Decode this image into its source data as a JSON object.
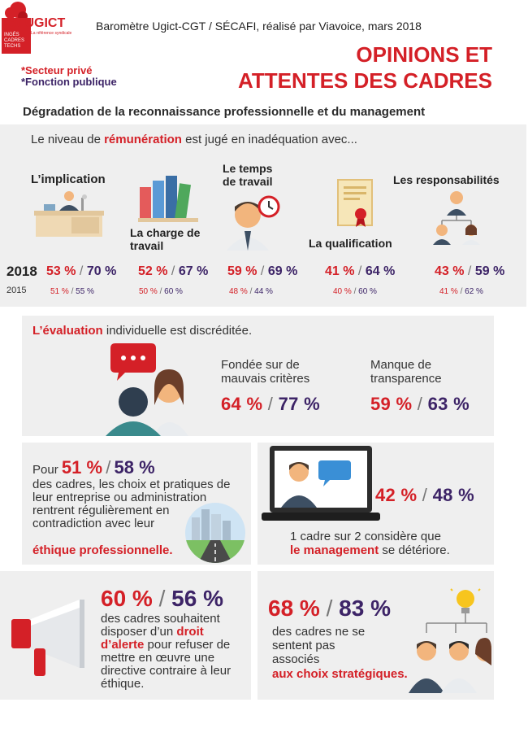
{
  "header": {
    "logo_text": "cgt UGICT",
    "logo_sub": "La référence syndicale",
    "logo_lines": [
      "INGÉS",
      "CADRES",
      "TECHS"
    ],
    "source": "Baromètre Ugict-CGT / SÉCAFI, réalisé par Viavoice, mars 2018",
    "legend_private": "*Secteur privé",
    "legend_public": "*Fonction publique",
    "title_line1": "OPINIONS ET",
    "title_line2": "ATTENTES DES CADRES",
    "subtitle": "Dégradation de la reconnaissance professionnelle et du management"
  },
  "remuneration": {
    "intro_before": "Le niveau de ",
    "intro_keyword": "rémunération",
    "intro_after": " est jugé en inadéquation avec...",
    "year_2018": "2018",
    "year_2015": "2015",
    "slash": "/",
    "items": [
      {
        "label": "L’implication",
        "private_2018": "53 %",
        "public_2018": "70 %",
        "private_2015": "51 %",
        "public_2015": "55 %"
      },
      {
        "label": "La charge de travail",
        "private_2018": "52 %",
        "public_2018": "67 %",
        "private_2015": "50 %",
        "public_2015": "60 %"
      },
      {
        "label": "Le temps de travail",
        "private_2018": "59 %",
        "public_2018": "69 %",
        "private_2015": "48 %",
        "public_2015": "44 %"
      },
      {
        "label": "La qualification",
        "private_2018": "41 %",
        "public_2018": "64 %",
        "private_2015": "40 %",
        "public_2015": "60 %"
      },
      {
        "label": "Les responsabilités",
        "private_2018": "43 %",
        "public_2018": "59 %",
        "private_2015": "41 %",
        "public_2015": "62 %"
      }
    ]
  },
  "evaluation": {
    "keyword": "L’évaluation",
    "rest": " individuelle est discréditée.",
    "col1_label": "Fondée sur de mauvais critères",
    "col1_private": "64 %",
    "col1_public": "77 %",
    "col2_label": "Manque de transparence",
    "col2_private": "59 %",
    "col2_public": "63 %"
  },
  "ethics": {
    "prefix": "Pour ",
    "private": "51 %",
    "public": "58 %",
    "text": "des cadres, les choix et pratiques de leur entreprise ou administration rentrent régulièrement en contradiction avec leur",
    "keyword": "éthique professionnelle."
  },
  "management": {
    "private": "42 %",
    "public": "48 %",
    "text_line1": "1 cadre sur 2 considère que",
    "keyword": "le management",
    "text_after": " se détériore."
  },
  "alert": {
    "private": "60 %",
    "public": "56 %",
    "text_before": "des cadres souhaitent disposer d’un ",
    "keyword": "droit d’alerte",
    "text_after": " pour refuser de mettre en œuvre une directive contraire à leur éthique."
  },
  "strategy": {
    "private": "68 %",
    "public": "83 %",
    "text": "des cadres ne se sentent pas associés",
    "keyword": "aux choix stratégiques."
  },
  "colors": {
    "accent_red": "#d42027",
    "accent_purple": "#3d2467",
    "panel_grey": "#efefef"
  }
}
